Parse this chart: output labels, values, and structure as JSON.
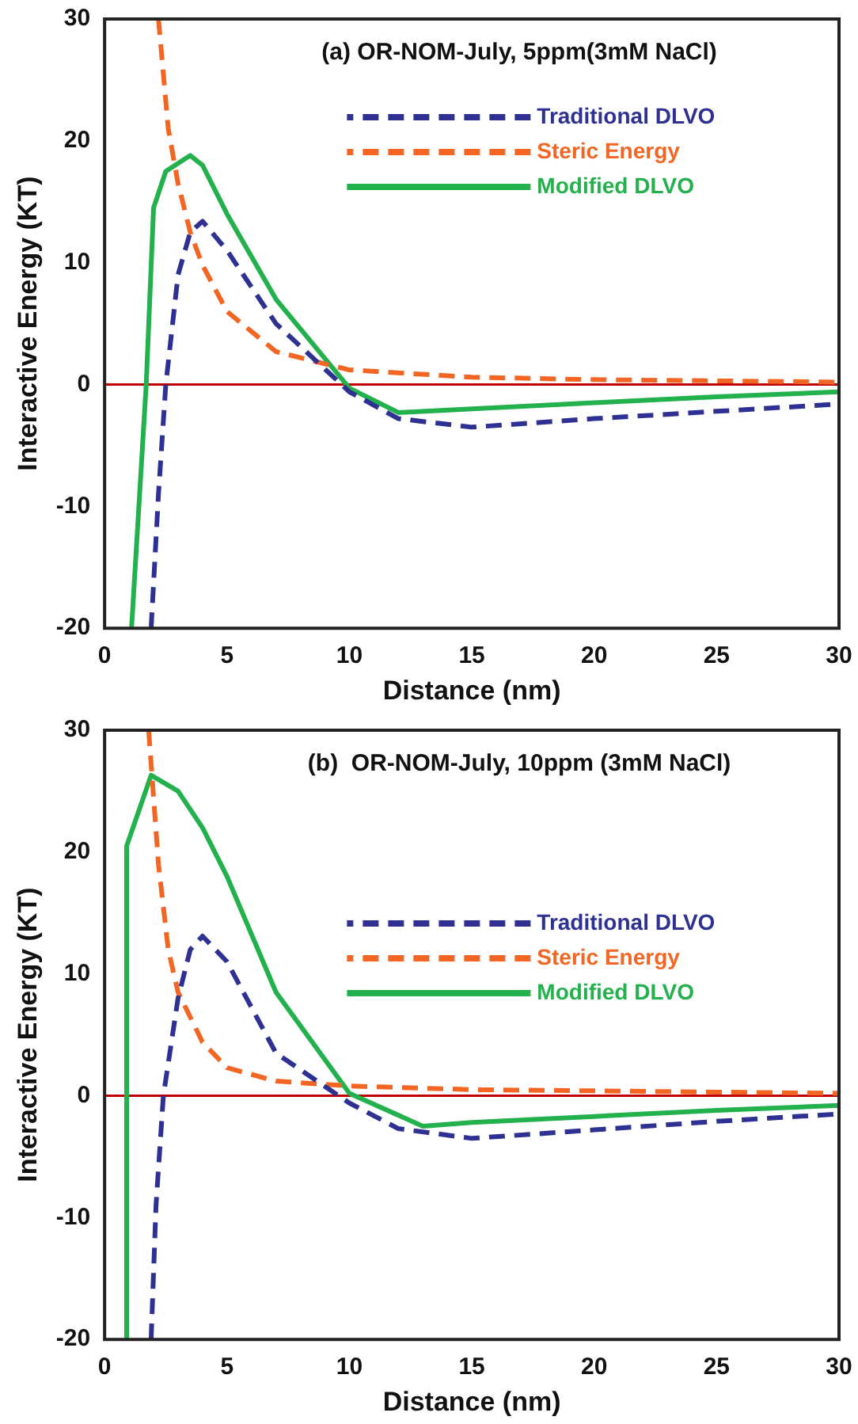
{
  "chart_data": [
    {
      "type": "line",
      "annotations": [
        "(a) OR-NOM-July, 5ppm(3mM NaCl)"
      ],
      "xlabel": "Distance (nm)",
      "ylabel": "Interactive Energy (KT)",
      "xlim": [
        0,
        30
      ],
      "xticks": [
        0,
        5,
        10,
        15,
        20,
        25,
        30
      ],
      "ylim": [
        -20,
        30
      ],
      "yticks": [
        -20,
        -10,
        0,
        10,
        20,
        30
      ],
      "grid": false,
      "legend": "top right",
      "marker": "none",
      "ref_lines": [
        {
          "axis": "y",
          "value": 0,
          "color": "#c00000"
        }
      ],
      "series": [
        {
          "name": "Traditional DLVO",
          "color": "#2e3192",
          "line_style": "dashed",
          "x": [
            1.9,
            2.2,
            2.5,
            3,
            3.5,
            4,
            5,
            7,
            10,
            12,
            15,
            20,
            25,
            30
          ],
          "values": [
            -20,
            -9,
            0,
            9,
            12.5,
            13.4,
            11,
            5,
            -0.6,
            -2.8,
            -3.5,
            -2.8,
            -2.2,
            -1.6
          ]
        },
        {
          "name": "Steric Energy",
          "color": "#f26522",
          "line_style": "dashed",
          "x": [
            2.2,
            2.6,
            3,
            3.5,
            4,
            5,
            7,
            10,
            15,
            20,
            25,
            30
          ],
          "values": [
            30,
            21,
            16.5,
            12.5,
            9.8,
            6,
            2.7,
            1.2,
            0.6,
            0.4,
            0.3,
            0.2
          ]
        },
        {
          "name": "Modified DLVO",
          "color": "#22b14c",
          "line_style": "solid",
          "x": [
            1.1,
            1.7,
            2,
            2.5,
            3.5,
            4,
            5,
            7,
            10,
            12,
            15,
            20,
            25,
            30
          ],
          "values": [
            -20,
            0,
            14.5,
            17.5,
            18.8,
            18,
            14,
            7,
            -0.3,
            -2.3,
            -2,
            -1.5,
            -1,
            -0.6
          ]
        }
      ]
    },
    {
      "type": "line",
      "annotations": [
        "(b)  OR-NOM-July, 10ppm (3mM NaCl)"
      ],
      "xlabel": "Distance (nm)",
      "ylabel": "Interactive Energy (KT)",
      "xlim": [
        0,
        30
      ],
      "xticks": [
        0,
        5,
        10,
        15,
        20,
        25,
        30
      ],
      "ylim": [
        -20,
        30
      ],
      "yticks": [
        -20,
        -10,
        0,
        10,
        20,
        30
      ],
      "grid": false,
      "legend": "right",
      "marker": "none",
      "ref_lines": [
        {
          "axis": "y",
          "value": 0,
          "color": "#c00000"
        }
      ],
      "series": [
        {
          "name": "Traditional DLVO",
          "color": "#2e3192",
          "line_style": "dashed",
          "x": [
            1.9,
            2.1,
            2.4,
            3,
            3.5,
            4,
            5,
            7,
            10,
            12,
            15,
            20,
            25,
            30
          ],
          "values": [
            -20,
            -9,
            0,
            8,
            12,
            13.1,
            11,
            3.5,
            -0.6,
            -2.7,
            -3.5,
            -2.8,
            -2.1,
            -1.5
          ]
        },
        {
          "name": "Steric Energy",
          "color": "#f26522",
          "line_style": "dashed",
          "x": [
            1.8,
            2.2,
            2.6,
            3,
            4,
            5,
            7,
            10,
            15,
            20,
            25,
            30
          ],
          "values": [
            30,
            19,
            12,
            8.5,
            4.4,
            2.3,
            1.2,
            0.8,
            0.5,
            0.4,
            0.3,
            0.2
          ]
        },
        {
          "name": "Modified DLVO",
          "color": "#22b14c",
          "line_style": "solid",
          "x": [
            0.85,
            0.9,
            1.9,
            3,
            4,
            5,
            7,
            10,
            13,
            15,
            20,
            25,
            30
          ],
          "values": [
            -20,
            20.5,
            26.3,
            25,
            22,
            18,
            8.5,
            0.2,
            -2.5,
            -2.2,
            -1.7,
            -1.2,
            -0.8
          ]
        }
      ]
    }
  ]
}
